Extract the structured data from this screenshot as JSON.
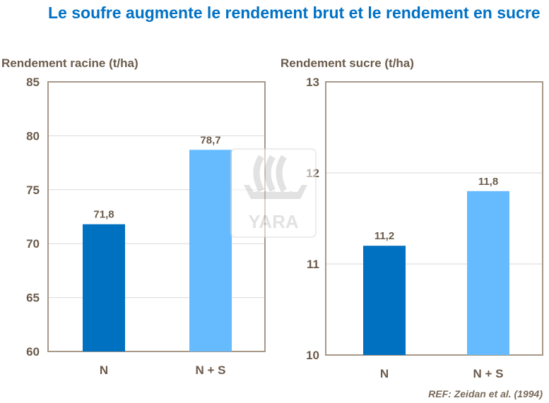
{
  "title": "Le soufre augmente le rendement brut et le rendement en sucre",
  "reference": "REF: Zeidan et al. (1994)",
  "logo_text": "YARA",
  "colors": {
    "title": "#0071c5",
    "N": "#0070c0",
    "N+S": "#66bbff",
    "text": "#6b5b4b",
    "border": "#a89888",
    "grid": "#d9d9d9"
  },
  "chart_data": [
    {
      "type": "bar",
      "ylabel": "Rendement racine (t/ha)",
      "categories": [
        "N",
        "N + S"
      ],
      "values": [
        71.8,
        78.7
      ],
      "data_labels": [
        "71,8",
        "78,7"
      ],
      "ylim": [
        60,
        85
      ],
      "yticks": [
        60,
        65,
        70,
        75,
        80,
        85
      ],
      "grid": true
    },
    {
      "type": "bar",
      "ylabel": "Rendement sucre (t/ha)",
      "categories": [
        "N",
        "N + S"
      ],
      "values": [
        11.2,
        11.8
      ],
      "data_labels": [
        "11,2",
        "11,8"
      ],
      "ylim": [
        10,
        13
      ],
      "yticks": [
        10,
        11,
        12,
        13
      ],
      "grid": true
    }
  ]
}
